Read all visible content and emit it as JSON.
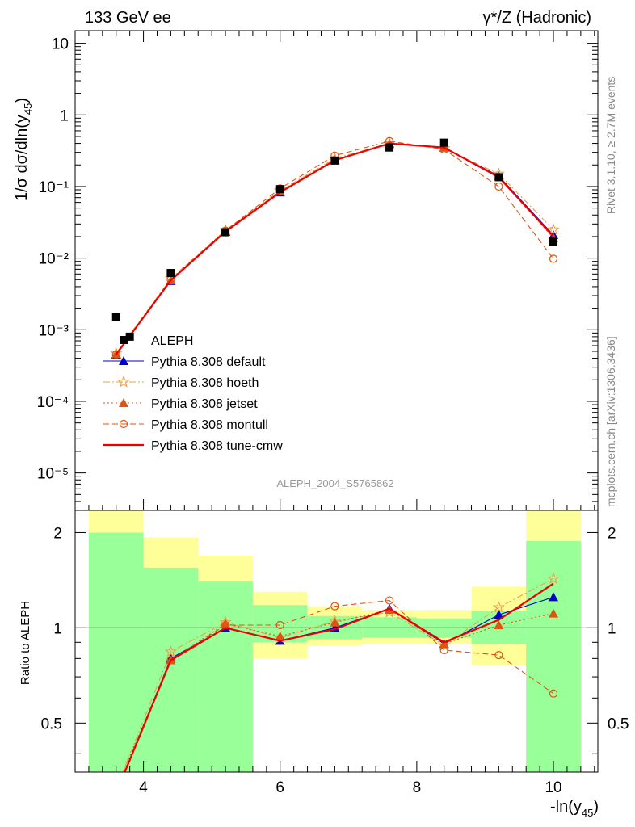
{
  "header": {
    "left_label": "133 GeV ee",
    "right_label": "γ*/Z (Hadronic)"
  },
  "side_labels": {
    "rivet": "Rivet 3.1.10, ≥ 2.7M events",
    "mcplots": "mcplots.cern.ch [arXiv:1306.3436]"
  },
  "analysis_id": "ALEPH_2004_S5765862",
  "chart_data": [
    {
      "type": "scatter",
      "panel": "main",
      "ylabel": "1/σ dσ/dln(y45)",
      "log_y": true,
      "xlim": [
        3.0,
        10.65
      ],
      "ylim": [
        3e-06,
        15
      ],
      "ytick_labels": [
        "10",
        "1",
        "10⁻¹",
        "10⁻²",
        "10⁻³",
        "10⁻⁴",
        "10⁻⁵"
      ],
      "ytick_values": [
        10,
        1,
        0.1,
        0.01,
        0.001,
        0.0001,
        1e-05
      ],
      "legend_position": "lower-left",
      "data": {
        "name": "ALEPH",
        "x": [
          3.6,
          3.8,
          4.4,
          5.2,
          6.0,
          6.8,
          7.6,
          8.4,
          9.2,
          10.0
        ],
        "y": [
          0.0015,
          0.0008,
          0.0062,
          0.023,
          0.092,
          0.23,
          0.35,
          0.41,
          0.135,
          0.017
        ]
      },
      "series": [
        {
          "name": "Pythia 8.308 default",
          "color": "#0000cc",
          "dash": "solid",
          "marker": "triangle",
          "x": [
            3.6,
            4.4,
            5.2,
            6.0,
            6.8,
            7.6,
            8.4,
            9.2,
            10.0
          ],
          "y": [
            0.00045,
            0.0048,
            0.0233,
            0.083,
            0.232,
            0.4,
            0.35,
            0.14,
            0.021
          ]
        },
        {
          "name": "Pythia 8.308 hoeth",
          "color": "#e8a050",
          "dash": "dashdot",
          "marker": "star",
          "x": [
            3.6,
            4.4,
            5.2,
            6.0,
            6.8,
            7.6,
            8.4,
            9.2,
            10.0
          ],
          "y": [
            0.00047,
            0.0052,
            0.0245,
            0.088,
            0.245,
            0.4,
            0.34,
            0.15,
            0.025
          ]
        },
        {
          "name": "Pythia 8.308 jetset",
          "color": "#dd5511",
          "dash": "dotted",
          "marker": "triangle",
          "x": [
            3.6,
            4.4,
            5.2,
            6.0,
            6.8,
            7.6,
            8.4,
            9.2,
            10.0
          ],
          "y": [
            0.00046,
            0.0049,
            0.024,
            0.086,
            0.235,
            0.39,
            0.35,
            0.14,
            0.019
          ]
        },
        {
          "name": "Pythia 8.308 montull",
          "color": "#dd5511",
          "dash": "dashed",
          "marker": "circle",
          "x": [
            3.6,
            4.4,
            5.2,
            6.0,
            6.8,
            7.6,
            8.4,
            9.2,
            10.0
          ],
          "y": [
            0.00045,
            0.005,
            0.0242,
            0.094,
            0.27,
            0.43,
            0.33,
            0.1,
            0.0098
          ]
        },
        {
          "name": "Pythia 8.308 tune-cmw",
          "color": "#ee0000",
          "dash": "solid",
          "marker": "none",
          "x": [
            3.6,
            4.4,
            5.2,
            6.0,
            6.8,
            7.6,
            8.4,
            9.2,
            10.0
          ],
          "y": [
            0.00045,
            0.0049,
            0.0235,
            0.083,
            0.232,
            0.4,
            0.35,
            0.135,
            0.02
          ]
        }
      ]
    },
    {
      "type": "line",
      "panel": "ratio",
      "xlabel": "-ln(y45)",
      "ylabel": "Ratio to ALEPH",
      "xlim": [
        3.0,
        10.65
      ],
      "ylim": [
        0.35,
        2.35
      ],
      "xtick_labels": [
        "4",
        "6",
        "8",
        "10"
      ],
      "xtick_values": [
        4,
        6,
        8,
        10
      ],
      "ytick_labels": [
        "0.5",
        "1",
        "2"
      ],
      "ytick_values": [
        0.5,
        1,
        2
      ],
      "bands": [
        {
          "x0": 3.2,
          "x1": 4.0,
          "green": [
            0.3,
            2.0
          ],
          "yellow": [
            0.3,
            2.5
          ]
        },
        {
          "x0": 4.0,
          "x1": 4.8,
          "green": [
            0.3,
            1.55
          ],
          "yellow": [
            0.56,
            1.93
          ]
        },
        {
          "x0": 4.8,
          "x1": 5.6,
          "green": [
            0.3,
            1.4
          ],
          "yellow": [
            0.72,
            1.69
          ]
        },
        {
          "x0": 5.6,
          "x1": 6.4,
          "green": [
            0.9,
            1.18
          ],
          "yellow": [
            0.8,
            1.3
          ]
        },
        {
          "x0": 6.4,
          "x1": 7.2,
          "green": [
            0.92,
            1.09
          ],
          "yellow": [
            0.88,
            1.17
          ]
        },
        {
          "x0": 7.2,
          "x1": 8.0,
          "green": [
            0.93,
            1.08
          ],
          "yellow": [
            0.89,
            1.14
          ]
        },
        {
          "x0": 8.0,
          "x1": 8.8,
          "green": [
            0.93,
            1.07
          ],
          "yellow": [
            0.89,
            1.14
          ]
        },
        {
          "x0": 8.8,
          "x1": 9.6,
          "green": [
            0.89,
            1.13
          ],
          "yellow": [
            0.76,
            1.35
          ]
        },
        {
          "x0": 9.6,
          "x1": 10.4,
          "green": [
            0.3,
            1.88
          ],
          "yellow": [
            0.3,
            2.5
          ]
        }
      ],
      "series": [
        {
          "name": "Pythia 8.308 default",
          "color": "#0000cc",
          "dash": "solid",
          "marker": "triangle",
          "x": [
            3.6,
            4.4,
            5.2,
            6.0,
            6.8,
            7.6,
            8.4,
            9.2,
            10.0
          ],
          "y": [
            0.3,
            0.8,
            1.0,
            0.91,
            1.0,
            1.15,
            0.89,
            1.1,
            1.25
          ]
        },
        {
          "name": "Pythia 8.308 hoeth",
          "color": "#e8a050",
          "dash": "dashdot",
          "marker": "star",
          "x": [
            3.6,
            4.4,
            5.2,
            6.0,
            6.8,
            7.6,
            8.4,
            9.2,
            10.0
          ],
          "y": [
            0.31,
            0.84,
            1.04,
            0.93,
            1.05,
            1.12,
            0.88,
            1.16,
            1.43
          ]
        },
        {
          "name": "Pythia 8.308 jetset",
          "color": "#dd5511",
          "dash": "dotted",
          "marker": "triangle",
          "x": [
            3.6,
            4.4,
            5.2,
            6.0,
            6.8,
            7.6,
            8.4,
            9.2,
            10.0
          ],
          "y": [
            0.31,
            0.79,
            1.03,
            0.94,
            1.04,
            1.14,
            0.89,
            1.02,
            1.11
          ]
        },
        {
          "name": "Pythia 8.308 montull",
          "color": "#dd5511",
          "dash": "dashed",
          "marker": "circle",
          "x": [
            3.6,
            4.4,
            5.2,
            6.0,
            6.8,
            7.6,
            8.4,
            9.2,
            10.0
          ],
          "y": [
            0.3,
            0.79,
            1.02,
            1.02,
            1.17,
            1.22,
            0.85,
            0.82,
            0.62
          ]
        },
        {
          "name": "Pythia 8.308 tune-cmw",
          "color": "#ee0000",
          "dash": "solid",
          "marker": "none",
          "x": [
            3.6,
            4.4,
            5.2,
            6.0,
            6.8,
            7.6,
            8.4,
            9.2,
            10.0
          ],
          "y": [
            0.3,
            0.79,
            1.0,
            0.91,
            0.99,
            1.15,
            0.9,
            1.06,
            1.38
          ]
        }
      ]
    }
  ]
}
